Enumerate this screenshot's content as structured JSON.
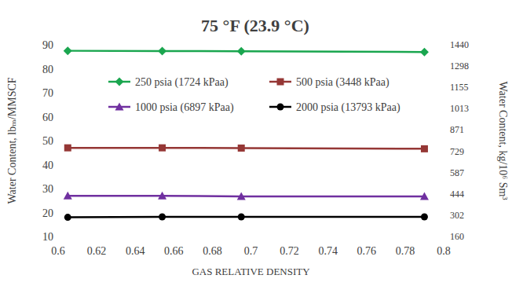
{
  "chart_data": {
    "type": "line",
    "title": "75 °F (23.9 °C)",
    "x_label": "GAS RELATIVE DENSITY",
    "y_label": "Water Content, lbₘ/MMSCF",
    "y2_label": "Water Content, kg/10⁶ Sm³",
    "x": [
      0.605,
      0.654,
      0.695,
      0.79
    ],
    "series": [
      {
        "name": "250 psia (1724 kPaa)",
        "color": "#1aa64f",
        "marker": "diamond",
        "values": [
          87.5,
          87.4,
          87.3,
          87.0
        ]
      },
      {
        "name": "500 psia (3448 kPaa)",
        "color": "#953735",
        "marker": "square",
        "values": [
          47.0,
          47.0,
          46.9,
          46.6
        ]
      },
      {
        "name": "1000 psia (6897 kPaa)",
        "color": "#7030a0",
        "marker": "triangle",
        "values": [
          27.0,
          27.0,
          26.7,
          26.7
        ]
      },
      {
        "name": "2000 psia (13793 kPaa)",
        "color": "#000000",
        "marker": "circle",
        "values": [
          18.0,
          18.2,
          18.2,
          18.2
        ]
      }
    ],
    "xlim": [
      0.6,
      0.8
    ],
    "xticks": [
      {
        "value": 0.6,
        "label": "0.6"
      },
      0.62,
      0.64,
      0.66,
      0.68,
      {
        "value": 0.7,
        "label": "0.7"
      },
      0.72,
      0.74,
      0.76,
      0.78,
      {
        "value": 0.8,
        "label": "0.8"
      }
    ],
    "ylim": [
      10,
      90
    ],
    "yticks": [
      10,
      20,
      30,
      40,
      50,
      60,
      70,
      80,
      90
    ],
    "y2lim": [
      160,
      1440
    ],
    "y2ticks": [
      160,
      302,
      444,
      587,
      729,
      871,
      1013,
      1155,
      1298,
      1440
    ],
    "grid": false,
    "legend": "top"
  }
}
